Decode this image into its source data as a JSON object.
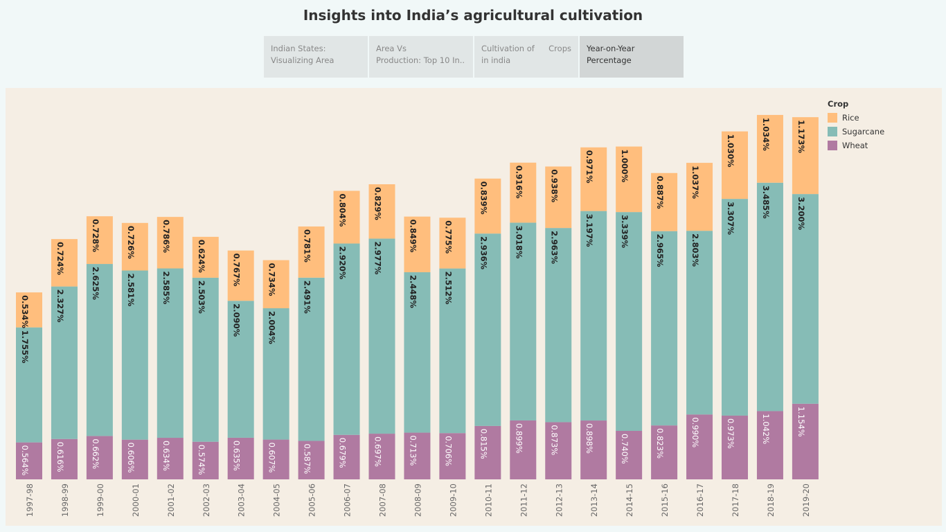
{
  "dashboard": {
    "title": "Insights into India’s agricultural cultivation",
    "tabs": [
      {
        "label": "Indian States:\nVisualizing Area",
        "extra": "",
        "active": false
      },
      {
        "label": "Area Vs\nProduction: Top 10 In..",
        "extra": "",
        "active": false
      },
      {
        "label": "Cultivation of\nin india",
        "extra": "Crops",
        "active": false
      },
      {
        "label": "Year-on-Year\nPercentage",
        "extra": "",
        "active": true
      }
    ]
  },
  "chart_data": {
    "type": "bar",
    "stacked": true,
    "categories": [
      "1997-98",
      "1998-99",
      "1999-00",
      "2000-01",
      "2001-02",
      "2002-03",
      "2003-04",
      "2004-05",
      "2005-06",
      "2006-07",
      "2007-08",
      "2008-09",
      "2009-10",
      "2010-11",
      "2011-12",
      "2012-13",
      "2013-14",
      "2014-15",
      "2015-16",
      "2016-17",
      "2017-18",
      "2018-19",
      "2019-20"
    ],
    "series": [
      {
        "name": "Wheat",
        "color": "#b07aa1",
        "values": [
          0.564,
          0.616,
          0.662,
          0.606,
          0.634,
          0.574,
          0.635,
          0.607,
          0.587,
          0.679,
          0.697,
          0.713,
          0.706,
          0.815,
          0.899,
          0.873,
          0.898,
          0.74,
          0.823,
          0.99,
          0.973,
          1.042,
          1.154
        ],
        "labels": [
          "0.564%",
          "0.616%",
          "0.662%",
          "0.606%",
          "0.634%",
          "0.574%",
          "0.635%",
          "0.607%",
          "0.587%",
          "0.679%",
          "0.697%",
          "0.713%",
          "0.706%",
          "0.815%",
          "0.899%",
          "0.873%",
          "0.898%",
          "0.740%",
          "0.823%",
          "0.990%",
          "0.973%",
          "1.042%",
          "1.154%"
        ]
      },
      {
        "name": "Sugarcane",
        "color": "#86bcb6",
        "values": [
          1.755,
          2.327,
          2.625,
          2.581,
          2.585,
          2.503,
          2.09,
          2.004,
          2.491,
          2.92,
          2.977,
          2.448,
          2.512,
          2.936,
          3.018,
          2.963,
          3.197,
          3.339,
          2.965,
          2.803,
          3.307,
          3.485,
          3.2
        ],
        "labels": [
          "1.755%",
          "2.327%",
          "2.625%",
          "2.581%",
          "2.585%",
          "2.503%",
          "2.090%",
          "2.004%",
          "2.491%",
          "2.920%",
          "2.977%",
          "2.448%",
          "2.512%",
          "2.936%",
          "3.018%",
          "2.963%",
          "3.197%",
          "3.339%",
          "2.965%",
          "2.803%",
          "3.307%",
          "3.485%",
          "3.200%"
        ]
      },
      {
        "name": "Rice",
        "color": "#ffbe7d",
        "values": [
          0.534,
          0.724,
          0.728,
          0.726,
          0.786,
          0.624,
          0.767,
          0.734,
          0.781,
          0.804,
          0.829,
          0.849,
          0.775,
          0.839,
          0.916,
          0.938,
          0.971,
          1.0,
          0.887,
          1.037,
          1.03,
          1.034,
          1.173
        ],
        "labels": [
          "0.534%",
          "0.724%",
          "0.728%",
          "0.726%",
          "0.786%",
          "0.624%",
          "0.767%",
          "0.734%",
          "0.781%",
          "0.804%",
          "0.829%",
          "0.849%",
          "0.775%",
          "0.839%",
          "0.916%",
          "0.938%",
          "0.971%",
          "1.000%",
          "0.887%",
          "1.037%",
          "1.030%",
          "1.034%",
          "1.173%"
        ]
      }
    ],
    "legend": {
      "title": "Crop",
      "position": "right",
      "items": [
        "Rice",
        "Sugarcane",
        "Wheat"
      ]
    },
    "grid": false,
    "ylim": [
      0,
      5.6
    ]
  }
}
